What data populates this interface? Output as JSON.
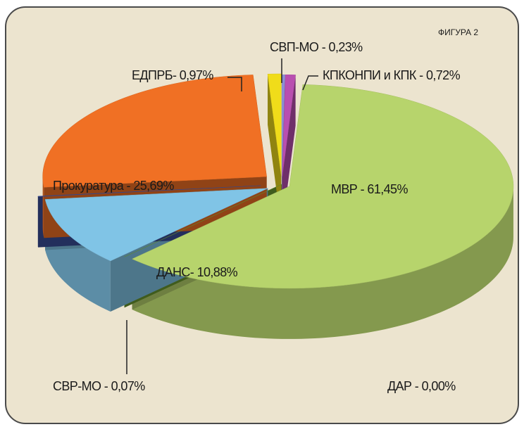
{
  "chart_data": {
    "type": "pie",
    "annotation": "ФИГУРА 2",
    "values": [
      0.23,
      0.72,
      61.45,
      0.0,
      10.88,
      0.07,
      25.69,
      0.97
    ],
    "value_labels": [
      "СВП-МО - 0,23%",
      "КПКОНПИ и КПК - 0,72%",
      "МВР - 61,45%",
      "ДАР - 0,00%",
      "ДАНС- 10,88%",
      "СВР-МО - 0,07%",
      "Прокуратура - 25,69%",
      "ЕДПРБ- 0,97%"
    ],
    "colors": [
      "#8c8fd4",
      "#b94fb0",
      "#b7d46c",
      "#6a9a30",
      "#80c4e6",
      "#3a4f9a",
      "#f07024",
      "#f0dc1a"
    ]
  }
}
